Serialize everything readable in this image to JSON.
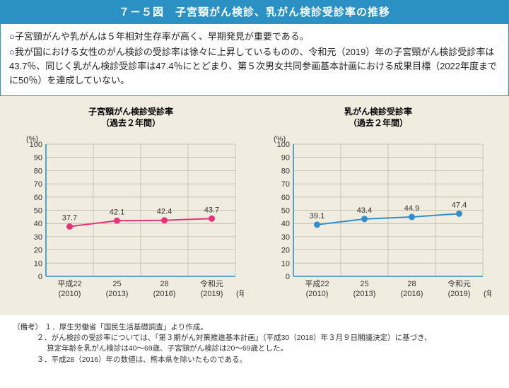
{
  "title": "７－５図　子宮頸がん検診、乳がん検診受診率の推移",
  "summary": {
    "line1": "○子宮頸がんや乳がんは５年相対生存率が高く、早期発見が重要である。",
    "line2": "○我が国における女性のがん検診の受診率は徐々に上昇しているものの、令和元（2019）年の子宮頸がん検診受診率は43.7％、同じく乳がん検診受診率は47.4％にとどまり、第５次男女共同参画基本計画における成果目標（2022年度までに50％）を達成していない。"
  },
  "charts": {
    "cervical": {
      "title_l1": "子宮頸がん検診受診率",
      "title_l2": "（過去２年間）",
      "type": "line",
      "y_label": "(%)",
      "x_label_suffix": "(年)",
      "ylim": [
        0,
        100
      ],
      "ytick_step": 10,
      "x_categories_top": [
        "平成22",
        "25",
        "28",
        "令和元"
      ],
      "x_categories_bottom": [
        "(2010)",
        "(2013)",
        "(2016)",
        "(2019)"
      ],
      "values": [
        37.7,
        42.1,
        42.4,
        43.7
      ],
      "line_color": "#e6337a",
      "marker_color": "#e6337a",
      "marker_radius": 4.5,
      "line_width": 2,
      "axis_color": "#2b91c4",
      "grid_color": "#bfb9a8",
      "background_color": "#f0ece0",
      "label_fontsize": 11,
      "tick_fontsize": 11
    },
    "breast": {
      "title_l1": "乳がん検診受診率",
      "title_l2": "（過去２年間）",
      "type": "line",
      "y_label": "(%)",
      "x_label_suffix": "(年)",
      "ylim": [
        0,
        100
      ],
      "ytick_step": 10,
      "x_categories_top": [
        "平成22",
        "25",
        "28",
        "令和元"
      ],
      "x_categories_bottom": [
        "(2010)",
        "(2013)",
        "(2016)",
        "(2019)"
      ],
      "values": [
        39.1,
        43.4,
        44.9,
        47.4
      ],
      "line_color": "#2f8fd0",
      "marker_color": "#2f8fd0",
      "marker_radius": 4.5,
      "line_width": 2,
      "axis_color": "#2b91c4",
      "grid_color": "#bfb9a8",
      "background_color": "#f0ece0",
      "label_fontsize": 11,
      "tick_fontsize": 11
    }
  },
  "notes": {
    "prefix": "（備考）",
    "n1": "１．厚生労働省「国民生活基礎調査」より作成。",
    "n2a": "２．がん検診の受診率については、「第３期がん対策推進基本計画」（平成30（2018）年３月９日閣議決定）に基づき、",
    "n2b": "算定年齢を乳がん検診は40〜69歳、子宮頸がん検診は20〜69歳とした。",
    "n3": "３．平成28（2016）年の数値は、熊本県を除いたものである。"
  }
}
